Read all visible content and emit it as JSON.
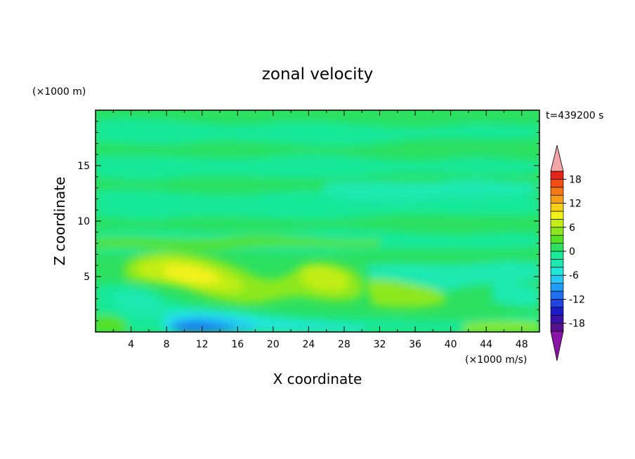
{
  "chart_data": {
    "type": "heatmap",
    "title": "zonal velocity",
    "xlabel": "X coordinate",
    "ylabel": "Z coordinate",
    "x_unit": "(×1000 m/s)",
    "y_unit": "(×1000 m)",
    "time_label": "t=439200 s",
    "xlim": [
      0,
      50
    ],
    "ylim": [
      0,
      20
    ],
    "x_ticks": [
      4,
      8,
      12,
      16,
      20,
      24,
      28,
      32,
      36,
      40,
      44,
      48
    ],
    "y_ticks": [
      5,
      10,
      15
    ],
    "colorbar": {
      "levels": [
        -20,
        -18,
        -16,
        -14,
        -12,
        -10,
        -8,
        -6,
        -4,
        -2,
        0,
        2,
        4,
        6,
        8,
        10,
        12,
        14,
        16,
        18,
        20
      ],
      "colors": [
        "#5a0f8e",
        "#3a12a8",
        "#1c1cc8",
        "#1f44e0",
        "#1f6ff0",
        "#1f9cf5",
        "#23c8f5",
        "#22e6d8",
        "#1ee8b0",
        "#18e89a",
        "#2de060",
        "#55e024",
        "#8ce81c",
        "#c2ee14",
        "#f2f21a",
        "#f5cf18",
        "#f5a018",
        "#f57818",
        "#f24d16",
        "#e62318"
      ],
      "under_color": "#8a14a8",
      "over_color": "#f4a6a6",
      "tick_labels": [
        18,
        12,
        6,
        0,
        -6,
        -12,
        -18
      ]
    },
    "field_summary": [
      {
        "feature": "jet",
        "x_range": [
          6,
          16
        ],
        "z_range": [
          4,
          6.5
        ],
        "peak": 6
      },
      {
        "feature": "jet",
        "x_range": [
          22,
          28
        ],
        "z_range": [
          3.5,
          5.5
        ],
        "peak": 4
      },
      {
        "feature": "minimum",
        "x_range": [
          9,
          16
        ],
        "z_range": [
          0,
          1
        ],
        "peak": -12
      },
      {
        "feature": "minimum",
        "x_range": [
          2,
          6
        ],
        "z_range": [
          2,
          3
        ],
        "peak": -4
      }
    ]
  }
}
